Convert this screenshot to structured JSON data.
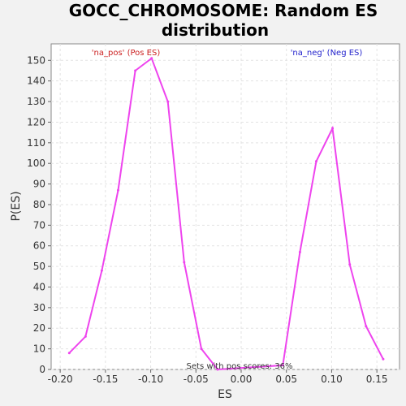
{
  "chart_data": {
    "type": "line",
    "title": "GOCC_CHROMOSOME: Random ES distribution",
    "title_lines": [
      "GOCC_CHROMOSOME: Random ES",
      "distribution"
    ],
    "xlabel": "ES",
    "ylabel": "P(ES)",
    "xlim": [
      -0.21,
      0.175
    ],
    "ylim": [
      0,
      158
    ],
    "x_ticks": [
      -0.2,
      -0.15,
      -0.1,
      -0.05,
      0.0,
      0.05,
      0.1,
      0.15
    ],
    "x_tick_labels": [
      "-0.20",
      "-0.15",
      "-0.10",
      "-0.05",
      "0.00",
      "0.05",
      "0.10",
      "0.15"
    ],
    "y_ticks": [
      0,
      10,
      20,
      30,
      40,
      50,
      60,
      70,
      80,
      90,
      100,
      110,
      120,
      130,
      140,
      150
    ],
    "y_tick_labels": [
      "0",
      "10",
      "20",
      "30",
      "40",
      "50",
      "60",
      "70",
      "80",
      "90",
      "100",
      "110",
      "120",
      "130",
      "140",
      "150"
    ],
    "grid": true,
    "series": [
      {
        "color": "#ee44ee",
        "x": [
          -0.19,
          -0.172,
          -0.154,
          -0.136,
          -0.117,
          -0.099,
          -0.081,
          -0.063,
          -0.044,
          -0.026,
          0.046,
          0.065,
          0.083,
          0.101,
          0.12,
          0.138,
          0.157
        ],
        "y": [
          8,
          16,
          48,
          87,
          145,
          151,
          130,
          52,
          10,
          0,
          2,
          57,
          101,
          117,
          51,
          21,
          5
        ]
      }
    ],
    "annotations": {
      "pos_label": "'na_pos' (Pos ES)",
      "pos_color": "#cc2222",
      "neg_label": "'na_neg' (Neg ES)",
      "neg_color": "#2222cc",
      "sets_label": "Sets with pos scores: 36%"
    },
    "colors": {
      "plot_background": "#ffffff",
      "page_background": "#f2f2f2"
    }
  }
}
